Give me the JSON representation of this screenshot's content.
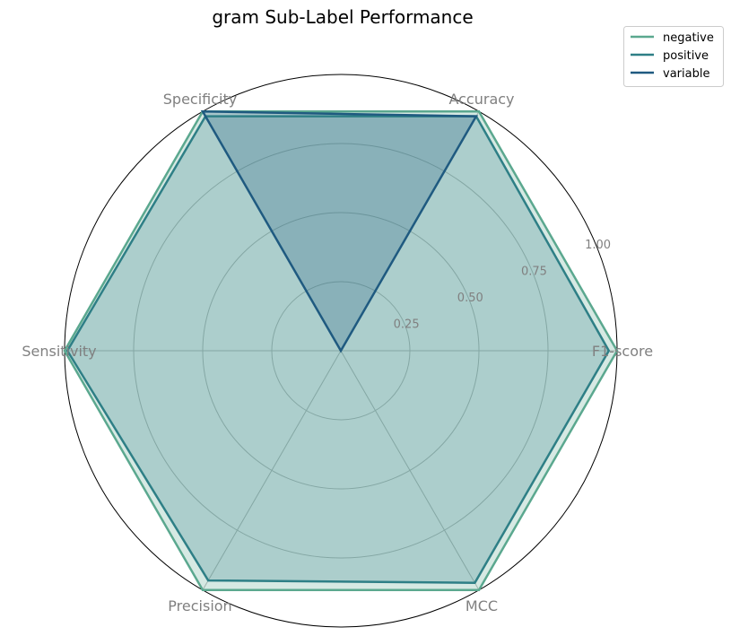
{
  "chart_data": {
    "type": "radar",
    "title": "gram Sub-Label Performance",
    "axes": [
      "F1-score",
      "Accuracy",
      "Specificity",
      "Sensitivity",
      "Precision",
      "MCC"
    ],
    "r_ticks": [
      "0.25",
      "0.50",
      "0.75",
      "1.00"
    ],
    "r_tick_values": [
      0.25,
      0.5,
      0.75,
      1.0
    ],
    "rlim": [
      0,
      1
    ],
    "grid": true,
    "legend_position": "top-right",
    "series": [
      {
        "name": "negative",
        "color": "#5ba88f",
        "values": [
          1.0,
          1.0,
          1.0,
          1.0,
          1.0,
          1.0
        ]
      },
      {
        "name": "positive",
        "color": "#2e7f86",
        "values": [
          0.97,
          0.98,
          0.98,
          0.99,
          0.96,
          0.97
        ]
      },
      {
        "name": "variable",
        "color": "#1f5a80",
        "values": [
          0.0,
          0.98,
          1.0,
          0.0,
          0.0,
          0.0
        ]
      }
    ]
  }
}
